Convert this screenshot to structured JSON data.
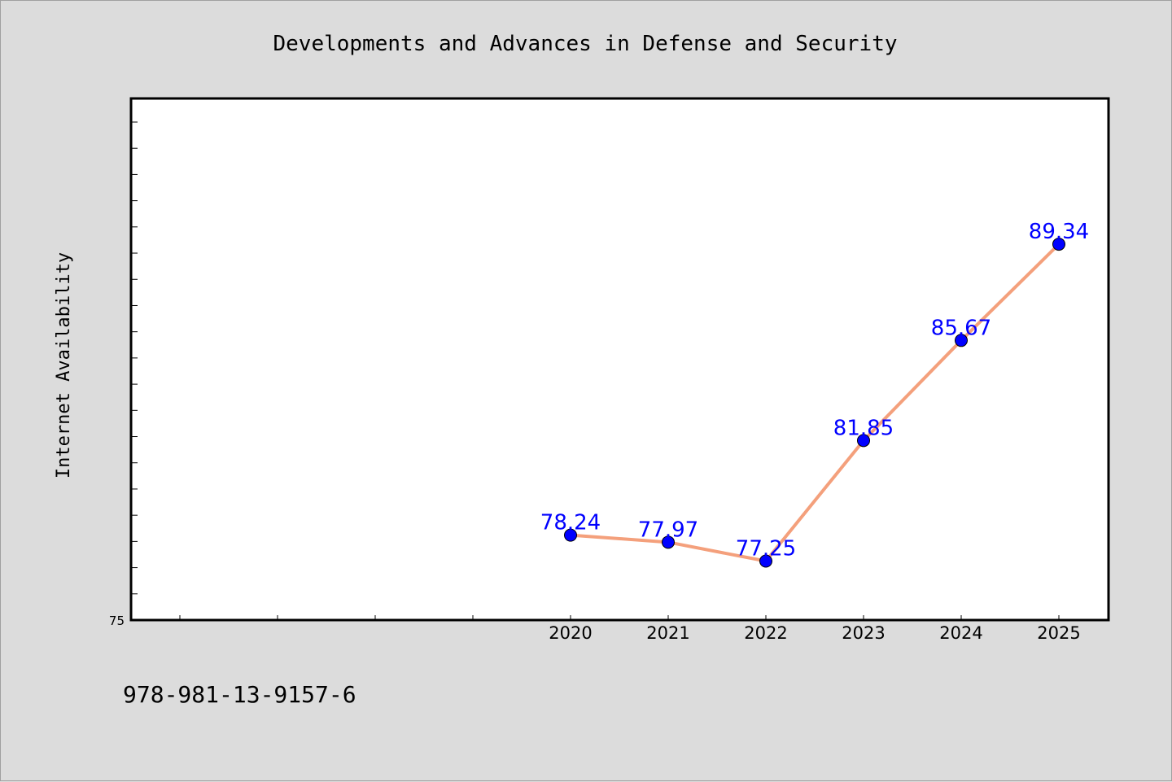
{
  "chart_data": {
    "type": "line",
    "title": "Developments and Advances in Defense and Security",
    "xlabel": "",
    "ylabel": "Internet Availability",
    "x": [
      "2020",
      "2021",
      "2022",
      "2023",
      "2024",
      "2025"
    ],
    "series": [
      {
        "values": [
          78.24,
          77.97,
          77.25,
          81.85,
          85.67,
          89.34
        ],
        "labels": [
          "78.24",
          "77.97",
          "77.25",
          "81.85",
          "85.67",
          "89.34"
        ],
        "line_color": "#f4a07c",
        "marker_color": "#0000ff",
        "label_color": "#0000ff"
      }
    ],
    "ytick_labels": [
      "75"
    ],
    "ylim": [
      75,
      94.9
    ],
    "grid": false,
    "legend": "none"
  },
  "footer": {
    "isbn": "978-981-13-9157-6"
  },
  "colors": {
    "background": "#dcdcdc",
    "plot_background": "#ffffff",
    "axis": "#000000"
  }
}
